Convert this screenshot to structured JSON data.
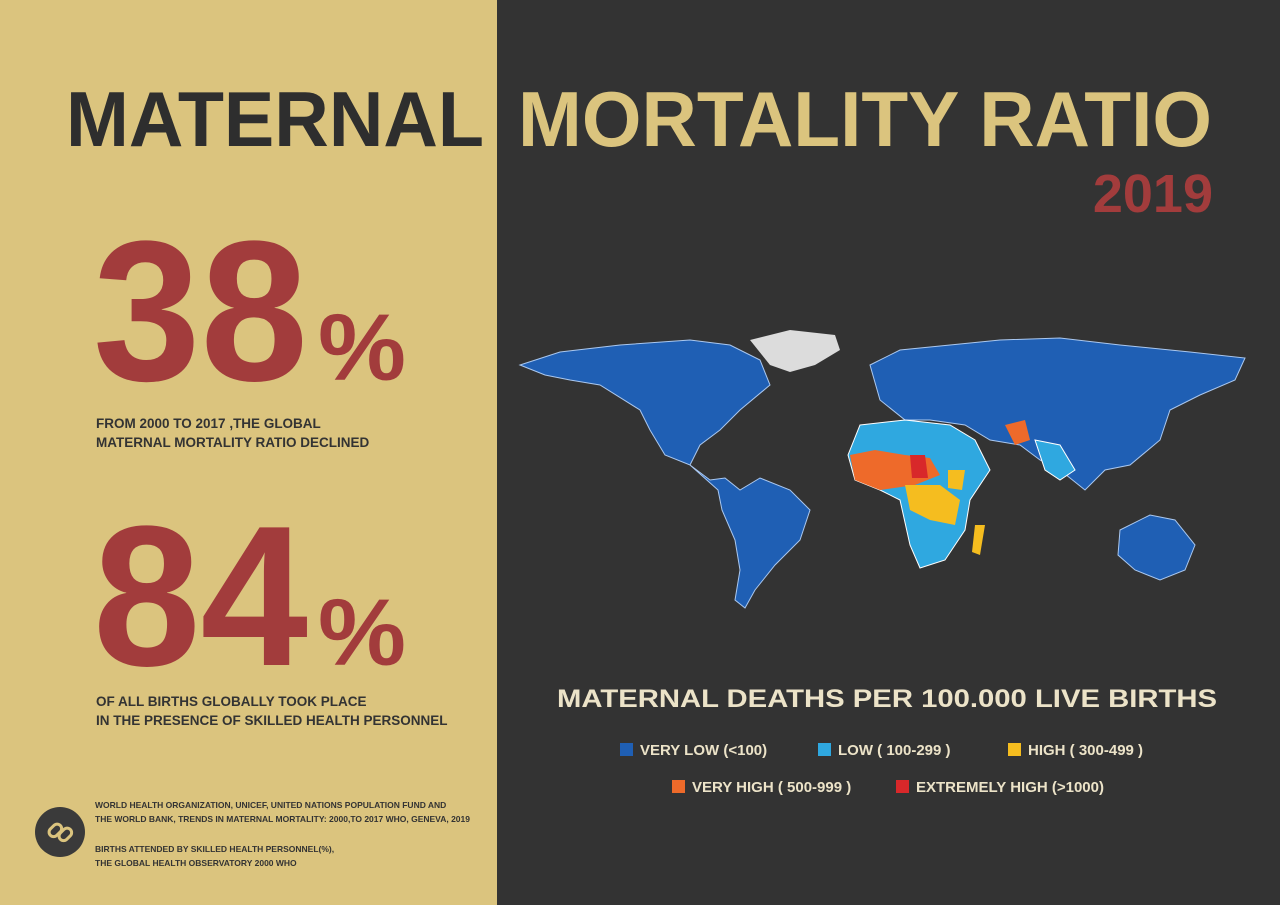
{
  "header": {
    "title_left": "MATERNAL",
    "title_right": "MORTALITY RATIO",
    "year": "2019"
  },
  "stats": [
    {
      "number": "38",
      "unit": "%",
      "caption": [
        "FROM  2000  TO  2017 ,THE GLOBAL",
        "MATERNAL MORTALITY RATIO DECLINED"
      ]
    },
    {
      "number": "84",
      "unit": "%",
      "caption": [
        "OF ALL BIRTHS GLOBALLY TOOK PLACE",
        "IN THE PRESENCE OF SKILLED HEALTH PERSONNEL"
      ]
    }
  ],
  "sources": [
    [
      "WORLD HEALTH ORGANIZATION, UNICEF, UNITED NATIONS POPULATION FUND AND",
      "THE WORLD BANK, TRENDS IN MATERNAL MORTALITY: 2000,TO 2017 WHO, GENEVA, 2019"
    ],
    [
      "BIRTHS ATTENDED BY SKILLED HEALTH PERSONNEL(%),",
      "THE GLOBAL HEALTH OBSERVATORY 2000 WHO"
    ]
  ],
  "legend": {
    "title": "MATERNAL DEATHS PER 100.000 LIVE BIRTHS",
    "items": [
      {
        "label": "VERY LOW (<100)",
        "color": "#1f5fb4"
      },
      {
        "label": "LOW ( 100-299 )",
        "color": "#2fa8e0"
      },
      {
        "label": "HIGH ( 300-499 )",
        "color": "#f5bd1f"
      },
      {
        "label": "VERY HIGH ( 500-999 )",
        "color": "#ee6a2a"
      },
      {
        "label": "EXTREMELY HIGH (>1000)",
        "color": "#d8282a"
      }
    ]
  }
}
